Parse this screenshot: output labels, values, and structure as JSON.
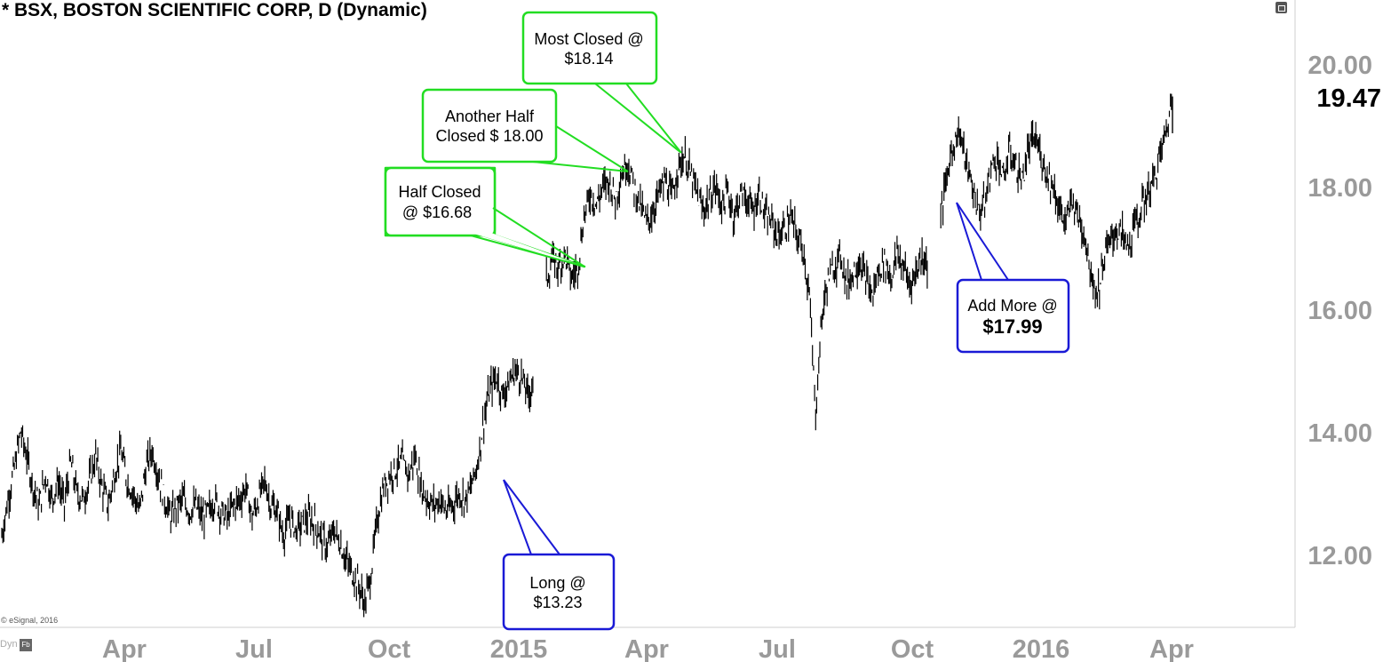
{
  "title": "* BSX, BOSTON SCIENTIFIC CORP, D (Dynamic)",
  "copyright": "© eSignal, 2016",
  "footer": {
    "dyn_label": "Dyn",
    "dyn_icon": "Fb"
  },
  "icons": {
    "restore": "window-restore-icon"
  },
  "colors": {
    "price": "#000000",
    "green_note": "#22dd22",
    "blue_note": "#1a1ad6",
    "axis_text": "#9a9a9a"
  },
  "chart_data": {
    "type": "line",
    "title": "* BSX, BOSTON SCIENTIFIC CORP, D (Dynamic)",
    "ylim": [
      11.0,
      20.8
    ],
    "y_ticks": [
      "12.00",
      "14.00",
      "16.00",
      "18.00",
      "20.00"
    ],
    "last_price": "19.47",
    "x_ticks": [
      "Apr",
      "Jul",
      "Oct",
      "2015",
      "Apr",
      "Jul",
      "Oct",
      "2016",
      "Apr"
    ],
    "grid": false,
    "series": [
      {
        "values": [
          12.3,
          12.9,
          13.4,
          14.0,
          13.6,
          13.1,
          12.8,
          13.3,
          12.9,
          13.2,
          12.8,
          13.5,
          13.0,
          12.9,
          13.2,
          13.6,
          13.1,
          12.8,
          13.3,
          13.7,
          13.2,
          13.0,
          12.7,
          13.4,
          13.7,
          13.3,
          12.9,
          12.6,
          12.8,
          12.9,
          12.7,
          12.8,
          12.6,
          12.7,
          12.9,
          12.7,
          12.6,
          12.8,
          12.9,
          13.1,
          12.6,
          12.9,
          13.2,
          12.8,
          12.7,
          12.3,
          12.6,
          12.4,
          12.5,
          12.6,
          12.5,
          12.3,
          12.1,
          12.4,
          12.2,
          11.9,
          11.7,
          11.5,
          11.2,
          11.7,
          12.6,
          13.1,
          13.3,
          13.4,
          13.5,
          13.3,
          13.6,
          13.1,
          12.9,
          12.8,
          12.9,
          12.7,
          12.8,
          13.0,
          12.9,
          13.1,
          13.5,
          14.2,
          14.7,
          14.9,
          14.6,
          14.8,
          15.0,
          14.9,
          14.6,
          14.8,
          null,
          16.5,
          16.8,
          16.7,
          16.9,
          16.5,
          16.7,
          17.5,
          17.9,
          17.7,
          18.0,
          18.1,
          17.8,
          18.2,
          18.4,
          18.0,
          17.7,
          17.4,
          17.6,
          17.9,
          18.1,
          17.8,
          18.3,
          18.5,
          18.2,
          17.9,
          17.6,
          17.8,
          18.0,
          17.7,
          17.9,
          17.5,
          17.9,
          17.8,
          17.6,
          17.9,
          17.5,
          17.4,
          17.2,
          17.3,
          17.5,
          17.2,
          17.0,
          16.2,
          14.3,
          15.9,
          16.5,
          16.7,
          16.9,
          16.4,
          16.6,
          16.8,
          16.5,
          16.2,
          16.6,
          16.8,
          16.5,
          16.9,
          16.7,
          16.4,
          16.6,
          16.9,
          16.7,
          null,
          17.5,
          18.2,
          18.7,
          18.9,
          18.4,
          18.0,
          17.6,
          17.7,
          18.3,
          18.5,
          18.1,
          18.6,
          18.3,
          18.1,
          18.6,
          18.8,
          18.5,
          18.2,
          18.0,
          17.6,
          17.4,
          17.8,
          17.5,
          17.2,
          16.6,
          16.2,
          16.8,
          17.1,
          17.3,
          17.2,
          17.0,
          17.4,
          17.6,
          17.9,
          18.1,
          18.5,
          18.9,
          19.47
        ]
      }
    ],
    "annotations": [
      {
        "text": [
          "Half Closed",
          "@ $16.68"
        ],
        "style": "green"
      },
      {
        "text": [
          "Another Half",
          "Closed $ 18.00"
        ],
        "style": "green"
      },
      {
        "text": [
          "Most Closed @",
          "$18.14"
        ],
        "style": "green"
      },
      {
        "text": [
          "Long @",
          "$13.23"
        ],
        "style": "blue"
      },
      {
        "text": [
          "Add More @",
          "$17.99"
        ],
        "style": "blue"
      }
    ]
  }
}
